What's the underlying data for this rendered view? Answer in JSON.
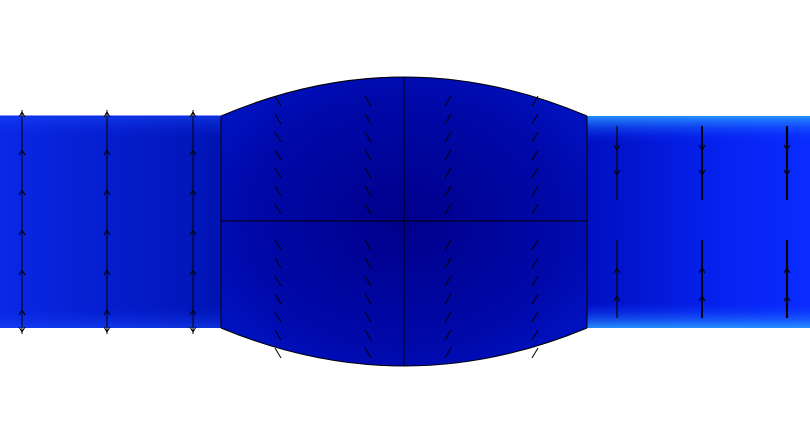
{
  "figure": {
    "kind": "flow-field-visualization",
    "colors": {
      "background": "#ffffff",
      "field_dark": "#00008c",
      "field_mid": "#0010c8",
      "field_bright": "#0a2cff",
      "edge_highlight": "#1a8cff",
      "mesh_lines": "#000000",
      "arrows": "#000000"
    },
    "regions": [
      "inlet-channel",
      "chamber",
      "outlet-channel"
    ],
    "arrow_columns": {
      "inlet": 3,
      "chamber": 4,
      "outlet": 3
    }
  }
}
